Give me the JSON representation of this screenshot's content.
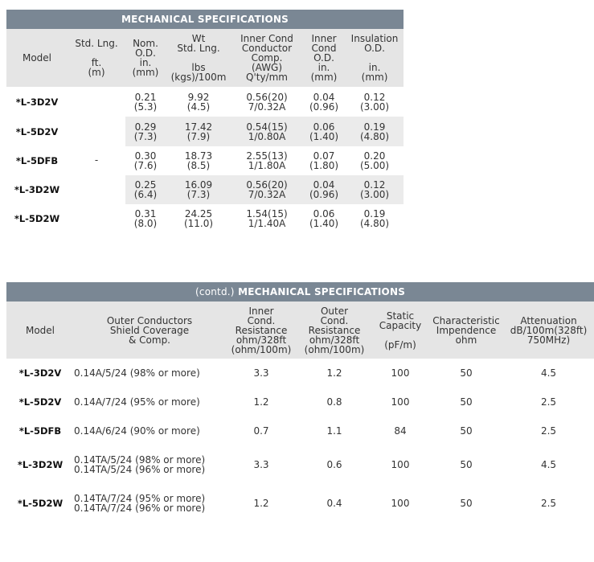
{
  "table1": {
    "title": "MECHANICAL SPECIFICATIONS",
    "headers": [
      [
        "Model"
      ],
      [
        "Std. Lng.",
        "",
        "ft.",
        "(m)"
      ],
      [
        "Nom.",
        "O.D.",
        "in.",
        "(mm)"
      ],
      [
        "Wt",
        "Std. Lng.",
        "",
        "lbs",
        "(kgs)/100m"
      ],
      [
        "Inner Cond",
        "Conductor",
        "Comp.",
        "(AWG)",
        "Q'ty/mm"
      ],
      [
        "Inner",
        "Cond",
        "O.D.",
        "in.",
        "(mm)"
      ],
      [
        "Insulation",
        "O.D.",
        "",
        "in.",
        "(mm)"
      ]
    ],
    "std_lng_value": "-",
    "rows": [
      {
        "model": "*L-3D2V",
        "nom_od": [
          "0.21",
          "(5.3)"
        ],
        "wt": [
          "9.92",
          "(4.5)"
        ],
        "inner_comp": [
          "0.56(20)",
          "7/0.32A"
        ],
        "inner_od": [
          "0.04",
          "(0.96)"
        ],
        "insulation_od": [
          "0.12",
          "(3.00)"
        ]
      },
      {
        "model": "*L-5D2V",
        "nom_od": [
          "0.29",
          "(7.3)"
        ],
        "wt": [
          "17.42",
          "(7.9)"
        ],
        "inner_comp": [
          "0.54(15)",
          "1/0.80A"
        ],
        "inner_od": [
          "0.06",
          "(1.40)"
        ],
        "insulation_od": [
          "0.19",
          "(4.80)"
        ]
      },
      {
        "model": "*L-5DFB",
        "nom_od": [
          "0.30",
          "(7.6)"
        ],
        "wt": [
          "18.73",
          "(8.5)"
        ],
        "inner_comp": [
          "2.55(13)",
          "1/1.80A"
        ],
        "inner_od": [
          "0.07",
          "(1.80)"
        ],
        "insulation_od": [
          "0.20",
          "(5.00)"
        ]
      },
      {
        "model": "*L-3D2W",
        "nom_od": [
          "0.25",
          "(6.4)"
        ],
        "wt": [
          "16.09",
          "(7.3)"
        ],
        "inner_comp": [
          "0.56(20)",
          "7/0.32A"
        ],
        "inner_od": [
          "0.04",
          "(0.96)"
        ],
        "insulation_od": [
          "0.12",
          "(3.00)"
        ]
      },
      {
        "model": "*L-5D2W",
        "nom_od": [
          "0.31",
          "(8.0)"
        ],
        "wt": [
          "24.25",
          "(11.0)"
        ],
        "inner_comp": [
          "1.54(15)",
          "1/1.40A"
        ],
        "inner_od": [
          "0.06",
          "(1.40)"
        ],
        "insulation_od": [
          "0.19",
          "(4.80)"
        ]
      }
    ]
  },
  "table2": {
    "title_prefix": "(contd.)",
    "title": "MECHANICAL SPECIFICATIONS",
    "headers": [
      [
        "Model"
      ],
      [
        "Outer Conductors",
        "Shield Coverage",
        "& Comp."
      ],
      [
        "Inner",
        "Cond.",
        "Resistance",
        "ohm/328ft",
        "(ohm/100m)"
      ],
      [
        "Outer",
        "Cond.",
        "Resistance",
        "ohm/328ft",
        "(ohm/100m)"
      ],
      [
        "Static",
        "Capacity",
        "",
        "(pF/m)"
      ],
      [
        "Characteristic",
        "Impendence",
        "ohm"
      ],
      [
        "Attenuation",
        "dB/100m(328ft)",
        "750MHz)"
      ]
    ],
    "rows": [
      {
        "model": "*L-3D2V",
        "shield": [
          "0.14A/5/24 (98% or more)"
        ],
        "inner_res": "3.3",
        "outer_res": "1.2",
        "capacity": "100",
        "impedance": "50",
        "attenuation": "4.5"
      },
      {
        "model": "*L-5D2V",
        "shield": [
          "0.14A/7/24 (95% or more)"
        ],
        "inner_res": "1.2",
        "outer_res": "0.8",
        "capacity": "100",
        "impedance": "50",
        "attenuation": "2.5"
      },
      {
        "model": "*L-5DFB",
        "shield": [
          "0.14A/6/24 (90% or more)"
        ],
        "inner_res": "0.7",
        "outer_res": "1.1",
        "capacity": "84",
        "impedance": "50",
        "attenuation": "2.5"
      },
      {
        "model": "*L-3D2W",
        "shield": [
          "0.14TA/5/24 (98% or more)",
          "0.14TA/5/24 (96% or more)"
        ],
        "inner_res": "3.3",
        "outer_res": "0.6",
        "capacity": "100",
        "impedance": "50",
        "attenuation": "4.5"
      },
      {
        "model": "*L-5D2W",
        "shield": [
          "0.14TA/7/24 (95% or more)",
          "0.14TA/7/24 (96% or more)"
        ],
        "inner_res": "1.2",
        "outer_res": "0.4",
        "capacity": "100",
        "impedance": "50",
        "attenuation": "2.5"
      }
    ]
  },
  "colors": {
    "title_bar": "#7a8794",
    "header_bg": "#e5e5e5",
    "row_shade": "#ebebeb"
  }
}
